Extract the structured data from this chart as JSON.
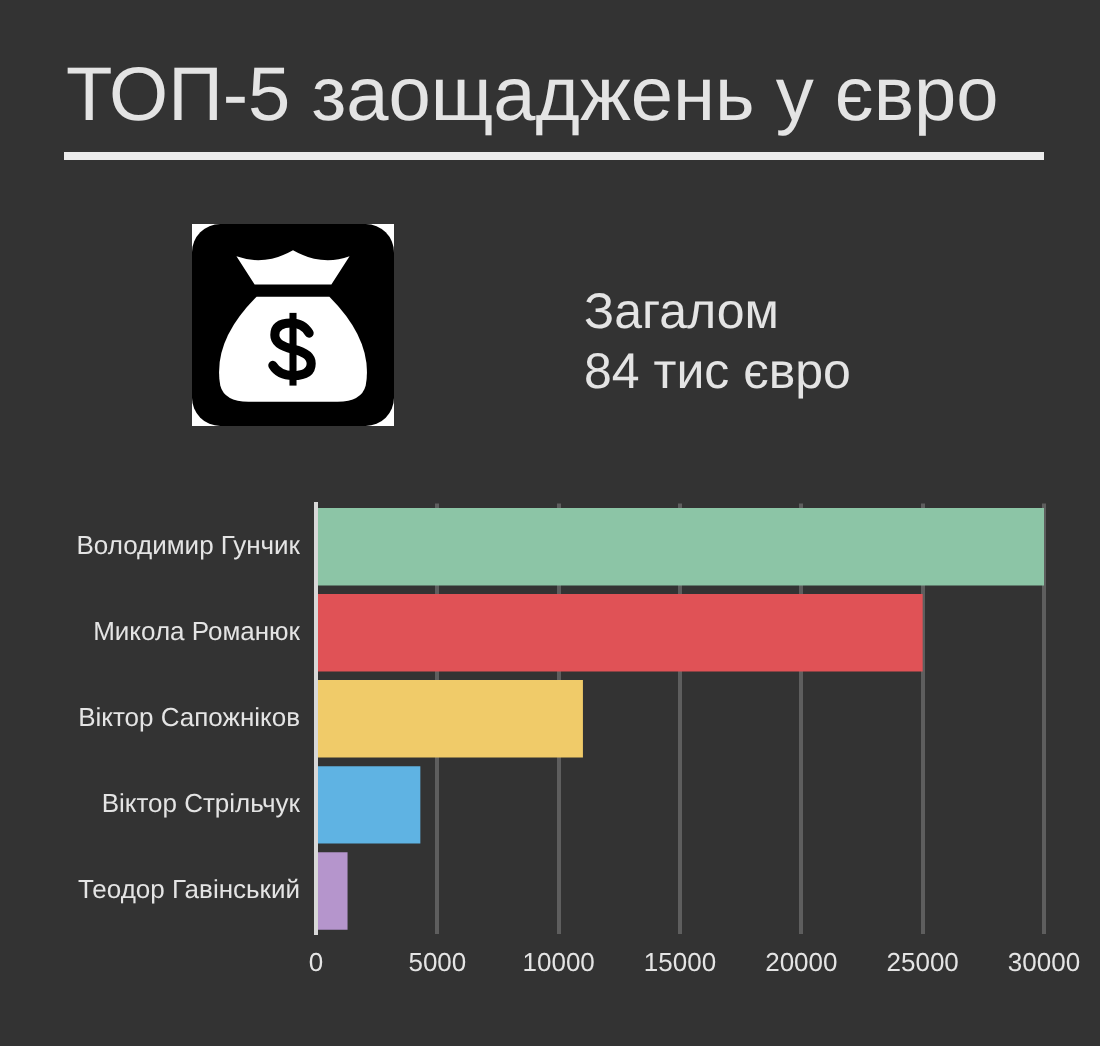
{
  "chart_data": {
    "type": "bar",
    "orientation": "horizontal",
    "title": "ТОП-5 заощаджень у євро",
    "annotations": [
      "Загалом",
      "84 тис євро"
    ],
    "categories": [
      "Володимир Гунчик",
      "Микола Романюк",
      "Віктор Сапожніков",
      "Віктор Стрільчук",
      "Теодор Гавінський"
    ],
    "values": [
      30000,
      25000,
      11000,
      4300,
      1300
    ],
    "colors": [
      "#8cc5a6",
      "#e05256",
      "#f0cb69",
      "#5fb3e3",
      "#b595cc"
    ],
    "xlim": [
      0,
      30000
    ],
    "xticks": [
      0,
      5000,
      10000,
      15000,
      20000,
      25000,
      30000
    ],
    "grid": "x",
    "legend": false
  }
}
